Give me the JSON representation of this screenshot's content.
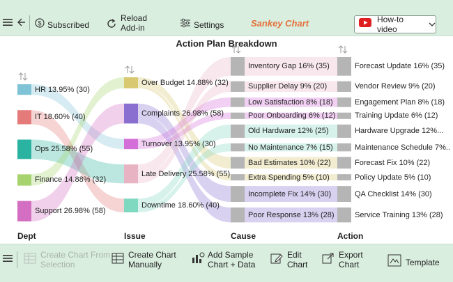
{
  "toolbar": {
    "subscribed": "Subscribed",
    "reload": "Reload\nAdd-in",
    "reload_line1": "Reload",
    "reload_line2": "Add-in",
    "settings": "Settings",
    "app_title": "Sankey Chart",
    "app_title_color": "#e4703a",
    "video": "How-to video"
  },
  "bottom": {
    "create_from_selection_1": "Create Chart From",
    "create_from_selection_2": "Selection",
    "create_manually_1": "Create Chart",
    "create_manually_2": "Manually",
    "add_sample_1": "Add Sample",
    "add_sample_2": "Chart + Data",
    "edit_1": "Edit",
    "edit_2": "Chart",
    "export_1": "Export",
    "export_2": "Chart",
    "template": "Template"
  },
  "chart_data": {
    "type": "sankey",
    "title": "Action Plan Breakdown",
    "columns": [
      "Dept",
      "Issue",
      "Cause",
      "Action"
    ],
    "nodes": {
      "dept": [
        {
          "label": "HR 13.95% (30)",
          "value": 30,
          "color": "#7ec3d6"
        },
        {
          "label": "IT 18.60% (40)",
          "value": 40,
          "color": "#e47a7a"
        },
        {
          "label": "Ops 25.58% (55)",
          "value": 55,
          "color": "#2ab3a0"
        },
        {
          "label": "Finance 14.88% (32)",
          "value": 32,
          "color": "#a6d36e"
        },
        {
          "label": "Support 26.98% (58)",
          "value": 58,
          "color": "#d46ec2"
        }
      ],
      "issue": [
        {
          "label": "Over Budget 14.88% (32)",
          "value": 32,
          "color": "#d8c870"
        },
        {
          "label": "Complaints 26.98% (58)",
          "value": 58,
          "color": "#8a6fd0"
        },
        {
          "label": "Turnover 13.95% (30)",
          "value": 30,
          "color": "#d46ed9"
        },
        {
          "label": "Late Delivery 25.58% (55)",
          "value": 55,
          "color": "#e8b4c4"
        },
        {
          "label": "Downtime 18.60% (40)",
          "value": 40,
          "color": "#7fd8c0"
        }
      ],
      "cause": [
        {
          "label": "Inventory Gap 16% (35)",
          "value": 35
        },
        {
          "label": "Supplier Delay 9% (20)",
          "value": 20
        },
        {
          "label": "Low Satisfaction 8% (18)",
          "value": 18
        },
        {
          "label": "Poor Onboarding 6% (12)",
          "value": 12
        },
        {
          "label": "Old Hardware 12% (25)",
          "value": 25
        },
        {
          "label": "No Maintenance 7% (15)",
          "value": 15
        },
        {
          "label": "Bad Estimates 10% (22)",
          "value": 22
        },
        {
          "label": "Extra Spending 5% (10)",
          "value": 10
        },
        {
          "label": "Incomplete Fix 14% (30)",
          "value": 30
        },
        {
          "label": "Poor Response 13% (28)",
          "value": 28
        }
      ],
      "action": [
        {
          "label": "Forecast Update 16% (35)",
          "value": 35
        },
        {
          "label": "Vendor Review 9% (20)",
          "value": 20
        },
        {
          "label": "Engagement Plan 8% (18)",
          "value": 18
        },
        {
          "label": "Training Update 6% (12)",
          "value": 12
        },
        {
          "label": "Hardware Upgrade 12%...",
          "value": 25
        },
        {
          "label": "Maintenance Schedule 7%...",
          "value": 15
        },
        {
          "label": "Forecast Fix 10% (22)",
          "value": 22
        },
        {
          "label": "Policy Update 5% (10)",
          "value": 10
        },
        {
          "label": "QA Checklist 14% (30)",
          "value": 30
        },
        {
          "label": "Service Training 13% (28)",
          "value": 28
        }
      ]
    },
    "node_gray": "#b5b5b5",
    "links_dept_issue": [
      {
        "from": 0,
        "to": 2,
        "value": 30
      },
      {
        "from": 1,
        "to": 4,
        "value": 40
      },
      {
        "from": 2,
        "to": 3,
        "value": 55
      },
      {
        "from": 3,
        "to": 0,
        "value": 32
      },
      {
        "from": 4,
        "to": 1,
        "value": 58
      }
    ],
    "links_issue_cause": [
      {
        "from": 0,
        "to": 6,
        "value": 22
      },
      {
        "from": 0,
        "to": 7,
        "value": 10
      },
      {
        "from": 1,
        "to": 8,
        "value": 30
      },
      {
        "from": 1,
        "to": 9,
        "value": 28
      },
      {
        "from": 2,
        "to": 2,
        "value": 18
      },
      {
        "from": 2,
        "to": 3,
        "value": 12
      },
      {
        "from": 3,
        "to": 0,
        "value": 35
      },
      {
        "from": 3,
        "to": 1,
        "value": 20
      },
      {
        "from": 4,
        "to": 4,
        "value": 25
      },
      {
        "from": 4,
        "to": 5,
        "value": 15
      }
    ]
  }
}
